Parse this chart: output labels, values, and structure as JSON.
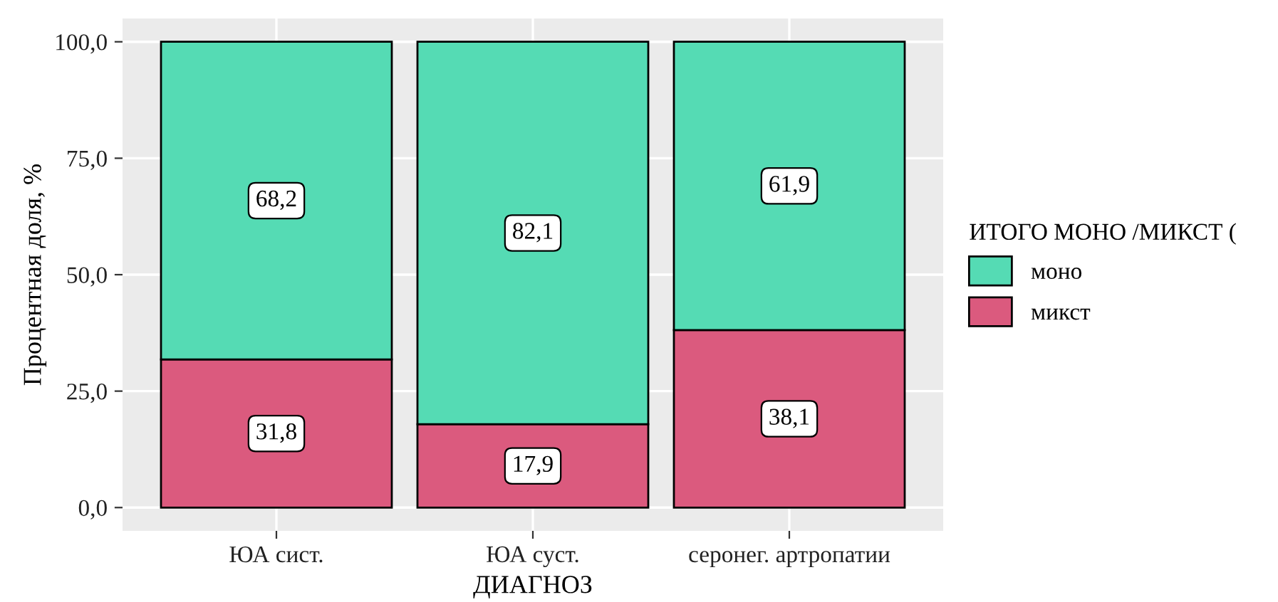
{
  "chart_data": {
    "type": "bar",
    "stacked": true,
    "xlabel": "ДИАГНОЗ",
    "ylabel": "Процентная доля, %",
    "legend_title": "ИТОГО МОНО /МИКСТ (",
    "categories": [
      "ЮА сист.",
      "ЮА суст.",
      "серонег. артропатии"
    ],
    "series": [
      {
        "name": "микст",
        "color": "#db5a7e",
        "values": [
          31.8,
          17.9,
          38.1
        ],
        "value_labels": [
          "31,8",
          "17,9",
          "38,1"
        ]
      },
      {
        "name": "моно",
        "color": "#55dbb4",
        "values": [
          68.2,
          82.1,
          61.9
        ],
        "value_labels": [
          "68,2",
          "82,1",
          "61,9"
        ]
      }
    ],
    "ylim": [
      -5,
      105
    ],
    "yticks": [
      {
        "value": 0,
        "label": "0,0"
      },
      {
        "value": 25,
        "label": "25,0"
      },
      {
        "value": 50,
        "label": "50,0"
      },
      {
        "value": 75,
        "label": "75,0"
      },
      {
        "value": 100,
        "label": "100,0"
      }
    ],
    "grid": true,
    "legend": "right"
  }
}
